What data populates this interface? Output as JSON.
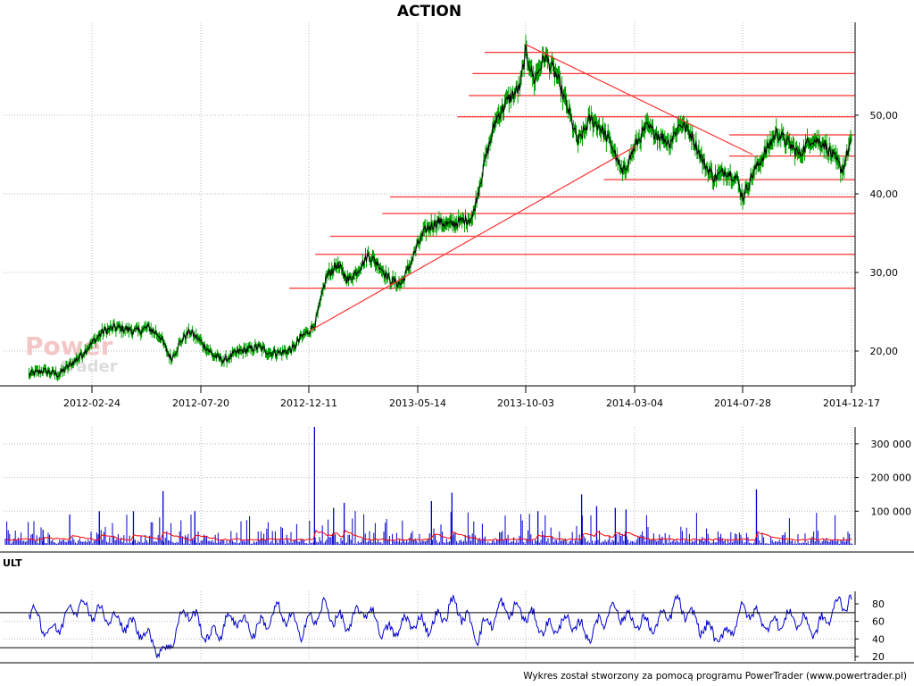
{
  "title": "ACTION",
  "footer": "Wykres został stworzony za pomocą programu PowerTrader (www.powertrader.pl)",
  "watermark": {
    "line1": "Power",
    "line2": "trader"
  },
  "colors": {
    "price_line": "#000000",
    "price_fill": "#00a000",
    "support_resistance": "#ff3333",
    "volume_bars": "#0000cc",
    "volume_ma": "#ff0000",
    "ult_line": "#0000cc",
    "grid": "#bbbbbb"
  },
  "chart_data": [
    {
      "type": "line",
      "panel": "price",
      "title": "ACTION",
      "x_tick_labels": [
        "2012-02-24",
        "2012-07-20",
        "2012-12-11",
        "2013-05-14",
        "2013-10-03",
        "2014-03-04",
        "2014-07-28",
        "2014-12-17"
      ],
      "y_tick_labels": [
        "20,00",
        "30,00",
        "40,00",
        "50,00"
      ],
      "ylim": [
        15.5,
        60
      ],
      "grid": true,
      "series": [
        {
          "x": [
            "2011-12-01",
            "2011-12-20",
            "2012-01-10",
            "2012-01-25",
            "2012-02-10",
            "2012-02-24",
            "2012-03-10",
            "2012-03-25",
            "2012-04-10",
            "2012-04-25",
            "2012-05-10",
            "2012-05-25",
            "2012-06-10",
            "2012-06-25",
            "2012-07-05",
            "2012-07-20",
            "2012-08-05",
            "2012-08-20",
            "2012-09-05",
            "2012-09-20",
            "2012-10-05",
            "2012-10-20",
            "2012-11-05",
            "2012-11-20",
            "2012-12-01",
            "2012-12-11",
            "2012-12-20",
            "2013-01-05",
            "2013-01-20",
            "2013-02-05",
            "2013-02-20",
            "2013-03-05",
            "2013-03-20",
            "2013-04-05",
            "2013-04-20",
            "2013-05-01",
            "2013-05-14",
            "2013-05-25",
            "2013-06-10",
            "2013-06-25",
            "2013-07-10",
            "2013-07-25",
            "2013-08-10",
            "2013-08-25",
            "2013-09-10",
            "2013-09-25",
            "2013-10-03",
            "2013-10-15",
            "2013-10-30",
            "2013-11-15",
            "2013-11-30",
            "2013-12-15",
            "2014-01-01",
            "2014-01-15",
            "2014-02-01",
            "2014-02-15",
            "2014-03-04",
            "2014-03-20",
            "2014-04-05",
            "2014-04-20",
            "2014-05-05",
            "2014-05-20",
            "2014-06-05",
            "2014-06-20",
            "2014-07-05",
            "2014-07-20",
            "2014-07-28",
            "2014-08-10",
            "2014-08-25",
            "2014-09-10",
            "2014-09-25",
            "2014-10-10",
            "2014-10-25",
            "2014-11-10",
            "2014-11-25",
            "2014-12-05",
            "2014-12-17"
          ],
          "values": [
            17.0,
            17.5,
            17.0,
            18.2,
            19.5,
            21.0,
            22.5,
            23.0,
            22.8,
            22.5,
            23.0,
            22.0,
            19.0,
            21.5,
            22.5,
            21.2,
            19.5,
            18.8,
            19.8,
            20.2,
            20.5,
            19.8,
            19.8,
            20.3,
            21.8,
            22.5,
            23.5,
            29.5,
            31.0,
            29.0,
            30.5,
            32.2,
            31.0,
            29.0,
            28.5,
            30.5,
            33.5,
            35.5,
            36.5,
            36.0,
            36.5,
            37.0,
            44.0,
            49.5,
            52.0,
            53.5,
            58.0,
            54.5,
            57.5,
            55.0,
            51.0,
            46.5,
            49.5,
            48.5,
            46.0,
            42.5,
            46.0,
            48.5,
            47.5,
            46.5,
            49.0,
            47.5,
            44.0,
            42.0,
            43.0,
            42.0,
            39.5,
            42.5,
            45.0,
            47.8,
            46.5,
            45.0,
            47.0,
            46.5,
            44.5,
            43.0,
            47.0
          ]
        }
      ],
      "annotations": {
        "trendlines": [
          {
            "x": [
              "2012-12-11",
              "2014-03-04"
            ],
            "values": [
              22.5,
              46.0
            ]
          },
          {
            "x": [
              "2013-10-03",
              "2014-08-10"
            ],
            "values": [
              59.0,
              45.0
            ]
          }
        ],
        "horizontal_levels": [
          {
            "value": 58.0,
            "x_start": "2013-08-10"
          },
          {
            "value": 55.3,
            "x_start": "2013-07-25"
          },
          {
            "value": 52.5,
            "x_start": "2013-07-20"
          },
          {
            "value": 49.8,
            "x_start": "2013-07-05"
          },
          {
            "value": 47.5,
            "x_start": "2014-07-10"
          },
          {
            "value": 44.8,
            "x_start": "2014-07-10"
          },
          {
            "value": 41.8,
            "x_start": "2014-01-20"
          },
          {
            "value": 39.6,
            "x_start": "2013-04-05"
          },
          {
            "value": 37.5,
            "x_start": "2013-03-25"
          },
          {
            "value": 34.6,
            "x_start": "2013-01-10"
          },
          {
            "value": 32.3,
            "x_start": "2012-12-20"
          },
          {
            "value": 28.0,
            "x_start": "2012-11-15"
          }
        ]
      }
    },
    {
      "type": "bar",
      "panel": "volume",
      "y_tick_labels": [
        "100 000",
        "200 000",
        "300 000"
      ],
      "ylim": [
        0,
        350000
      ],
      "grid": true,
      "spikes": [
        {
          "x": "2011-12-20",
          "value": 45000
        },
        {
          "x": "2012-01-25",
          "value": 90000
        },
        {
          "x": "2012-03-05",
          "value": 100000
        },
        {
          "x": "2012-04-20",
          "value": 100000
        },
        {
          "x": "2012-05-30",
          "value": 160000
        },
        {
          "x": "2012-07-12",
          "value": 100000
        },
        {
          "x": "2012-12-19",
          "value": 350000
        },
        {
          "x": "2013-01-15",
          "value": 110000
        },
        {
          "x": "2013-01-30",
          "value": 125000
        },
        {
          "x": "2013-06-01",
          "value": 130000
        },
        {
          "x": "2013-06-28",
          "value": 155000
        },
        {
          "x": "2013-10-20",
          "value": 100000
        },
        {
          "x": "2013-12-20",
          "value": 150000
        },
        {
          "x": "2014-01-10",
          "value": 115000
        },
        {
          "x": "2014-02-05",
          "value": 110000
        },
        {
          "x": "2014-02-20",
          "value": 105000
        },
        {
          "x": "2014-08-15",
          "value": 165000
        }
      ]
    },
    {
      "type": "line",
      "panel": "indicator",
      "title": "ULT",
      "y_tick_labels": [
        "20",
        "40",
        "60",
        "80"
      ],
      "ylim": [
        15,
        92
      ],
      "reference_lines": [
        30,
        70
      ],
      "grid": true,
      "series": [
        {
          "name": "ULT",
          "x": [
            "2011-12-01",
            "2012-01-01",
            "2012-02-01",
            "2012-03-01",
            "2012-04-01",
            "2012-05-01",
            "2012-06-01",
            "2012-07-01",
            "2012-08-01",
            "2012-09-01",
            "2012-10-01",
            "2012-11-01",
            "2012-12-01",
            "2013-01-01",
            "2013-02-01",
            "2013-03-01",
            "2013-04-01",
            "2013-05-01",
            "2013-06-01",
            "2013-07-01",
            "2013-08-01",
            "2013-09-01",
            "2013-10-01",
            "2013-11-01",
            "2013-12-01",
            "2014-01-01",
            "2014-02-01",
            "2014-03-01",
            "2014-04-01",
            "2014-05-01",
            "2014-06-01",
            "2014-07-01",
            "2014-08-01",
            "2014-09-01",
            "2014-10-01",
            "2014-11-01",
            "2014-12-01",
            "2014-12-17"
          ],
          "values": [
            75,
            45,
            80,
            70,
            60,
            50,
            22,
            75,
            40,
            65,
            50,
            72,
            50,
            75,
            55,
            75,
            45,
            60,
            55,
            80,
            45,
            75,
            70,
            50,
            60,
            45,
            75,
            60,
            55,
            80,
            55,
            40,
            75,
            55,
            65,
            50,
            80,
            85
          ]
        }
      ]
    }
  ]
}
